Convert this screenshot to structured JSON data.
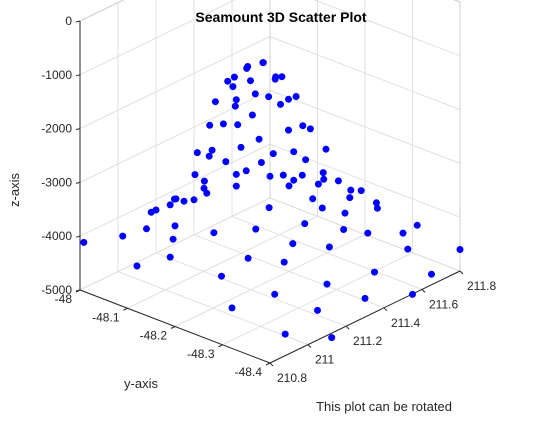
{
  "chart_data": {
    "type": "scatter",
    "title": "Seamount 3D Scatter Plot",
    "xlabel": "This plot can be rotated",
    "ylabel": "y-axis",
    "zlabel": "z-axis",
    "xlim": [
      210.8,
      211.8
    ],
    "ylim": [
      -48.4,
      -48.0
    ],
    "zlim": [
      -5000,
      0
    ],
    "x_ticks": [
      "210.8",
      "211",
      "211.2",
      "211.4",
      "211.6",
      "211.8"
    ],
    "y_ticks": [
      "-48",
      "-48.1",
      "-48.2",
      "-48.3",
      "-48.4"
    ],
    "z_ticks": [
      "0",
      "-1000",
      "-2000",
      "-3000",
      "-4000",
      "-5000"
    ],
    "marker_color": "#0000ff",
    "grid": true,
    "series": [
      {
        "points": [
          [
            211.24,
            -48.175,
            -1040
          ],
          [
            211.3,
            -48.185,
            -1000
          ],
          [
            211.27,
            -48.165,
            -1090
          ],
          [
            211.21,
            -48.195,
            -1150
          ],
          [
            211.34,
            -48.17,
            -1120
          ],
          [
            211.29,
            -48.215,
            -1190
          ],
          [
            211.19,
            -48.155,
            -1260
          ],
          [
            211.35,
            -48.205,
            -1280
          ],
          [
            211.25,
            -48.145,
            -1320
          ],
          [
            211.23,
            -48.225,
            -1380
          ],
          [
            211.38,
            -48.18,
            -1420
          ],
          [
            211.16,
            -48.185,
            -1450
          ],
          [
            211.31,
            -48.235,
            -1530
          ],
          [
            211.28,
            -48.13,
            -1600
          ],
          [
            211.17,
            -48.215,
            -1650
          ],
          [
            211.4,
            -48.215,
            -1700
          ],
          [
            211.2,
            -48.125,
            -1760
          ],
          [
            211.36,
            -48.145,
            -1820
          ],
          [
            211.13,
            -48.17,
            -1900
          ],
          [
            211.26,
            -48.255,
            -1950
          ],
          [
            211.43,
            -48.17,
            -2050
          ],
          [
            211.33,
            -48.115,
            -2100
          ],
          [
            211.11,
            -48.215,
            -2150
          ],
          [
            211.4,
            -48.245,
            -2200
          ],
          [
            211.18,
            -48.255,
            -2250
          ],
          [
            211.22,
            -48.105,
            -2300
          ],
          [
            211.46,
            -48.205,
            -2380
          ],
          [
            211.08,
            -48.16,
            -2450
          ],
          [
            211.3,
            -48.275,
            -2500
          ],
          [
            211.38,
            -48.1,
            -2580
          ],
          [
            211.13,
            -48.115,
            -2620
          ],
          [
            211.47,
            -48.25,
            -2680
          ],
          [
            211.06,
            -48.225,
            -2750
          ],
          [
            211.2,
            -48.28,
            -2800
          ],
          [
            211.43,
            -48.125,
            -2850
          ],
          [
            211.27,
            -48.09,
            -2900
          ],
          [
            211.37,
            -48.285,
            -2950
          ],
          [
            211.03,
            -48.175,
            -3000
          ],
          [
            211.5,
            -48.17,
            -3050
          ],
          [
            211.12,
            -48.27,
            -3100
          ],
          [
            211.46,
            -48.28,
            -3150
          ],
          [
            211.18,
            -48.09,
            -3200
          ],
          [
            211.01,
            -48.135,
            -3250
          ],
          [
            211.3,
            -48.31,
            -3280
          ],
          [
            211.53,
            -48.22,
            -3320
          ],
          [
            211.38,
            -48.075,
            -3350
          ],
          [
            211.05,
            -48.27,
            -3380
          ],
          [
            211.48,
            -48.11,
            -3420
          ],
          [
            211.22,
            -48.305,
            -3450
          ],
          [
            211.08,
            -48.09,
            -3480
          ],
          [
            211.55,
            -48.27,
            -3510
          ],
          [
            210.98,
            -48.21,
            -3530
          ],
          [
            211.28,
            -48.07,
            -3560
          ],
          [
            211.42,
            -48.31,
            -3580
          ],
          [
            211.12,
            -48.32,
            -3600
          ],
          [
            211.52,
            -48.14,
            -3620
          ],
          [
            211.0,
            -48.07,
            -3660
          ],
          [
            211.35,
            -48.335,
            -3680
          ],
          [
            210.96,
            -48.29,
            -3700
          ],
          [
            211.58,
            -48.19,
            -3720
          ],
          [
            211.16,
            -48.055,
            -3740
          ],
          [
            211.46,
            -48.065,
            -3760
          ],
          [
            211.59,
            -48.31,
            -3780
          ],
          [
            211.05,
            -48.33,
            -3790
          ],
          [
            211.25,
            -48.345,
            -3800
          ],
          [
            210.94,
            -48.14,
            -3820
          ],
          [
            211.55,
            -48.1,
            -3830
          ],
          [
            211.44,
            -48.35,
            -3850
          ],
          [
            211.62,
            -48.24,
            -3870
          ],
          [
            211.34,
            -48.045,
            -3880
          ],
          [
            211.1,
            -48.04,
            -3890
          ],
          [
            211.66,
            -48.28,
            -3900
          ],
          [
            210.9,
            -48.05,
            -4000
          ],
          [
            211.0,
            -48.06,
            -4000
          ],
          [
            211.1,
            -48.08,
            -4050
          ],
          [
            211.2,
            -48.03,
            -4000
          ],
          [
            210.9,
            -48.15,
            -4050
          ],
          [
            210.92,
            -48.25,
            -4100
          ],
          [
            210.95,
            -48.35,
            -4150
          ],
          [
            211.15,
            -48.38,
            -4200
          ],
          [
            211.35,
            -48.4,
            -4250
          ],
          [
            211.55,
            -48.39,
            -4200
          ],
          [
            211.7,
            -48.35,
            -4150
          ],
          [
            211.72,
            -48.1,
            -4100
          ],
          [
            211.6,
            -48.03,
            -4050
          ],
          [
            211.78,
            -48.2,
            -4150
          ],
          [
            210.85,
            -48.1,
            -4300
          ],
          [
            210.85,
            -48.3,
            -4400
          ],
          [
            211.05,
            -48.4,
            -4450
          ],
          [
            211.8,
            -48.4,
            -4600
          ],
          [
            211.8,
            -48.05,
            -4500
          ],
          [
            211.4,
            -48.0,
            -4350
          ],
          [
            211.6,
            -48.42,
            -4650
          ],
          [
            210.82,
            -48.0,
            -4150
          ],
          [
            211.25,
            -48.42,
            -4500
          ],
          [
            211.45,
            -48.44,
            -4700
          ],
          [
            211.75,
            -48.3,
            -4550
          ],
          [
            210.88,
            -48.4,
            -4600
          ],
          [
            211.65,
            -48.15,
            -4250
          ],
          [
            211.0,
            -48.45,
            -4700
          ]
        ]
      }
    ]
  }
}
